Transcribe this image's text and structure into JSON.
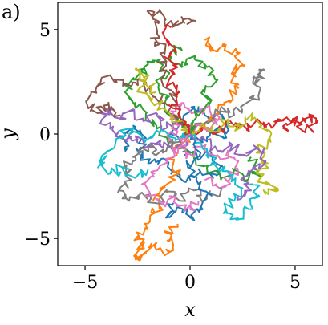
{
  "panel_label": "a)",
  "chart_data": {
    "type": "line",
    "title": "",
    "xlabel": "x",
    "ylabel": "y",
    "xlim": [
      -6.3,
      6.3
    ],
    "ylim": [
      -6.3,
      6.3
    ],
    "x_ticks": [
      -5,
      0,
      5
    ],
    "x_tick_labels": [
      "−5",
      "0",
      "5"
    ],
    "y_ticks": [
      -5,
      0,
      5
    ],
    "y_tick_labels": [
      "−5",
      "0",
      "5"
    ],
    "grid": false,
    "legend": "none",
    "series": [
      {
        "color": "#1f77b4",
        "values": [
          [
            0,
            0
          ],
          [
            0.6,
            -0.4
          ],
          [
            1.0,
            0.3
          ],
          [
            1.6,
            -0.2
          ],
          [
            1.9,
            0.5
          ],
          [
            1.4,
            1.0
          ],
          [
            0.9,
            0.7
          ],
          [
            0.4,
            1.3
          ],
          [
            -0.3,
            0.9
          ],
          [
            -0.8,
            0.2
          ],
          [
            -0.4,
            -0.6
          ],
          [
            0.3,
            -1.1
          ],
          [
            1.0,
            -0.9
          ],
          [
            1.5,
            -1.5
          ],
          [
            1.1,
            -2.1
          ],
          [
            0.5,
            -1.8
          ],
          [
            -0.2,
            -2.3
          ],
          [
            -0.9,
            -1.9
          ],
          [
            -1.4,
            -1.2
          ],
          [
            -2.0,
            -1.4
          ],
          [
            -2.5,
            -0.8
          ],
          [
            -2.1,
            -0.2
          ],
          [
            -2.7,
            0.4
          ],
          [
            -3.2,
            -0.1
          ],
          [
            -3.0,
            -0.7
          ]
        ]
      },
      {
        "color": "#ff7f0e",
        "values": [
          [
            0,
            0
          ],
          [
            -0.5,
            -0.5
          ],
          [
            -0.9,
            -1.2
          ],
          [
            -0.6,
            -1.9
          ],
          [
            -1.1,
            -2.4
          ],
          [
            -1.6,
            -2.9
          ],
          [
            -1.4,
            -3.5
          ],
          [
            -1.9,
            -3.9
          ],
          [
            -2.1,
            -4.5
          ],
          [
            -2.5,
            -4.9
          ],
          [
            -2.3,
            -5.5
          ],
          [
            -2.6,
            -6.0
          ],
          [
            -2.1,
            -5.7
          ],
          [
            -1.6,
            -5.2
          ],
          [
            -1.2,
            -5.8
          ],
          [
            -0.8,
            -5.3
          ],
          [
            -1.1,
            -4.7
          ],
          [
            -0.6,
            -4.3
          ]
        ]
      },
      {
        "color": "#ff7f0e",
        "values": [
          [
            0,
            0
          ],
          [
            0.7,
            0.5
          ],
          [
            1.3,
            1.1
          ],
          [
            1.9,
            1.6
          ],
          [
            2.3,
            2.2
          ],
          [
            2.0,
            2.9
          ],
          [
            2.6,
            3.3
          ],
          [
            2.2,
            3.9
          ],
          [
            1.6,
            4.2
          ],
          [
            1.1,
            4.0
          ],
          [
            0.7,
            4.5
          ]
        ]
      },
      {
        "color": "#2ca02c",
        "values": [
          [
            0,
            0
          ],
          [
            -0.6,
            0.6
          ],
          [
            -1.2,
            1.1
          ],
          [
            -1.0,
            1.8
          ],
          [
            -1.5,
            2.4
          ],
          [
            -1.1,
            3.0
          ],
          [
            -1.6,
            3.5
          ],
          [
            -2.2,
            3.2
          ],
          [
            -2.7,
            2.6
          ],
          [
            -3.1,
            2.0
          ],
          [
            -2.6,
            1.5
          ],
          [
            -2.1,
            1.0
          ],
          [
            -1.6,
            0.4
          ],
          [
            -1.1,
            -0.2
          ],
          [
            -0.5,
            -0.7
          ],
          [
            0.2,
            -1.2
          ],
          [
            0.8,
            -1.6
          ],
          [
            1.5,
            -2.1
          ],
          [
            2.1,
            -1.7
          ],
          [
            2.7,
            -2.2
          ],
          [
            3.2,
            -1.8
          ],
          [
            2.9,
            -1.1
          ]
        ]
      },
      {
        "color": "#d62728",
        "values": [
          [
            0,
            0
          ],
          [
            0.7,
            0.3
          ],
          [
            1.4,
            0.1
          ],
          [
            2.0,
            0.5
          ],
          [
            2.7,
            0.2
          ],
          [
            3.3,
            0.6
          ],
          [
            4.0,
            0.4
          ],
          [
            4.6,
            0.8
          ],
          [
            5.2,
            0.5
          ],
          [
            5.8,
            0.9
          ],
          [
            6.0,
            0.5
          ],
          [
            5.5,
            0.2
          ],
          [
            4.9,
            0.6
          ],
          [
            4.4,
            0.3
          ]
        ]
      },
      {
        "color": "#9467bd",
        "values": [
          [
            0,
            0
          ],
          [
            -0.5,
            0.5
          ],
          [
            -1.1,
            0.3
          ],
          [
            -1.6,
            0.9
          ],
          [
            -2.2,
            0.6
          ],
          [
            -2.8,
            1.1
          ],
          [
            -3.3,
            0.8
          ],
          [
            -3.9,
            1.2
          ],
          [
            -4.2,
            0.7
          ],
          [
            -3.7,
            0.2
          ],
          [
            -3.1,
            -0.3
          ],
          [
            -2.6,
            -0.1
          ],
          [
            -2.0,
            -0.6
          ],
          [
            -1.4,
            -0.3
          ],
          [
            -0.8,
            -0.8
          ],
          [
            -0.2,
            -0.4
          ]
        ]
      },
      {
        "color": "#8c564b",
        "values": [
          [
            0,
            0
          ],
          [
            -0.6,
            0.8
          ],
          [
            -1.2,
            1.5
          ],
          [
            -1.9,
            2.0
          ],
          [
            -2.5,
            2.6
          ],
          [
            -3.2,
            2.3
          ],
          [
            -3.8,
            2.8
          ],
          [
            -4.4,
            2.3
          ],
          [
            -4.9,
            1.6
          ],
          [
            -4.4,
            1.0
          ],
          [
            -3.9,
            1.4
          ],
          [
            -3.3,
            0.9
          ]
        ]
      },
      {
        "color": "#8c564b",
        "values": [
          [
            0,
            0
          ],
          [
            -0.5,
            1.1
          ],
          [
            -0.9,
            2.1
          ],
          [
            -1.4,
            3.0
          ],
          [
            -1.2,
            3.9
          ],
          [
            -1.7,
            4.6
          ],
          [
            -1.5,
            5.3
          ],
          [
            -1.9,
            5.9
          ],
          [
            -1.3,
            5.7
          ],
          [
            -0.8,
            5.2
          ],
          [
            -0.4,
            5.6
          ],
          [
            0.3,
            5.4
          ]
        ]
      },
      {
        "color": "#e377c2",
        "values": [
          [
            0,
            0
          ],
          [
            0.4,
            0.5
          ],
          [
            0.9,
            0.2
          ],
          [
            1.4,
            0.8
          ],
          [
            0.8,
            1.3
          ],
          [
            0.3,
            1.0
          ],
          [
            -0.3,
            1.5
          ],
          [
            -0.9,
            1.1
          ],
          [
            -0.5,
            0.4
          ],
          [
            -1.1,
            -0.1
          ],
          [
            -0.7,
            -0.7
          ],
          [
            -0.1,
            -1.0
          ],
          [
            0.6,
            -0.6
          ],
          [
            1.2,
            -1.2
          ],
          [
            1.8,
            -0.8
          ],
          [
            2.3,
            -1.3
          ],
          [
            2.0,
            -2.0
          ],
          [
            1.4,
            -2.6
          ],
          [
            0.7,
            -2.2
          ]
        ]
      },
      {
        "color": "#7f7f7f",
        "values": [
          [
            0,
            0
          ],
          [
            -0.7,
            -0.4
          ],
          [
            -1.3,
            -0.9
          ],
          [
            -2.0,
            -0.6
          ],
          [
            -2.6,
            -1.1
          ],
          [
            -3.2,
            -1.6
          ],
          [
            -2.8,
            -2.2
          ],
          [
            -3.4,
            -2.7
          ],
          [
            -2.9,
            -3.2
          ],
          [
            -2.3,
            -2.8
          ],
          [
            -1.7,
            -3.3
          ],
          [
            -1.1,
            -2.8
          ],
          [
            -0.5,
            -3.2
          ],
          [
            0.2,
            -2.7
          ],
          [
            0.8,
            -3.1
          ],
          [
            1.4,
            -2.6
          ]
        ]
      },
      {
        "color": "#7f7f7f",
        "values": [
          [
            0,
            0
          ],
          [
            0.8,
            0.6
          ],
          [
            1.5,
            1.3
          ],
          [
            2.1,
            0.9
          ],
          [
            2.7,
            1.5
          ],
          [
            3.3,
            2.0
          ],
          [
            3.0,
            2.7
          ],
          [
            3.5,
            3.1
          ],
          [
            3.1,
            2.4
          ]
        ]
      },
      {
        "color": "#bcbd22",
        "values": [
          [
            0,
            0
          ],
          [
            0.6,
            0.5
          ],
          [
            1.2,
            0.1
          ],
          [
            1.8,
            0.7
          ],
          [
            2.4,
            0.3
          ],
          [
            2.9,
            0.9
          ],
          [
            3.4,
            0.4
          ],
          [
            3.8,
            -0.2
          ],
          [
            3.3,
            -0.8
          ],
          [
            3.7,
            -1.4
          ],
          [
            3.2,
            -1.9
          ],
          [
            3.8,
            -2.4
          ],
          [
            4.2,
            -2.7
          ],
          [
            3.6,
            -2.9
          ]
        ]
      },
      {
        "color": "#bcbd22",
        "values": [
          [
            0,
            0
          ],
          [
            -0.6,
            0.6
          ],
          [
            -1.2,
            1.2
          ],
          [
            -1.8,
            1.7
          ],
          [
            -2.4,
            2.2
          ],
          [
            -2.0,
            2.8
          ],
          [
            -2.6,
            3.1
          ],
          [
            -2.2,
            2.5
          ],
          [
            -1.6,
            2.0
          ]
        ]
      },
      {
        "color": "#17becf",
        "values": [
          [
            0,
            0
          ],
          [
            -0.7,
            -0.3
          ],
          [
            -1.4,
            0.2
          ],
          [
            -2.1,
            -0.3
          ],
          [
            -2.7,
            0.3
          ],
          [
            -3.3,
            -0.2
          ],
          [
            -3.9,
            -0.8
          ],
          [
            -4.3,
            -1.5
          ],
          [
            -3.8,
            -1.9
          ],
          [
            -3.2,
            -1.6
          ],
          [
            -2.6,
            -2.1
          ],
          [
            -2.0,
            -1.7
          ]
        ]
      },
      {
        "color": "#17becf",
        "values": [
          [
            0,
            0
          ],
          [
            0.6,
            -0.7
          ],
          [
            1.2,
            -1.4
          ],
          [
            1.9,
            -2.0
          ],
          [
            2.5,
            -2.6
          ],
          [
            2.1,
            -3.2
          ],
          [
            1.6,
            -3.8
          ],
          [
            2.2,
            -4.1
          ],
          [
            2.8,
            -3.6
          ],
          [
            3.3,
            -3.0
          ],
          [
            3.0,
            -2.4
          ]
        ]
      },
      {
        "color": "#1f77b4",
        "values": [
          [
            0,
            0
          ],
          [
            0.5,
            -0.9
          ],
          [
            -0.1,
            -1.6
          ],
          [
            0.4,
            -2.4
          ],
          [
            1.0,
            -2.9
          ],
          [
            0.6,
            -3.6
          ],
          [
            0.0,
            -4.0
          ],
          [
            -0.6,
            -3.5
          ],
          [
            -1.1,
            -4.0
          ],
          [
            -0.8,
            -3.3
          ]
        ]
      },
      {
        "color": "#2ca02c",
        "values": [
          [
            0,
            0
          ],
          [
            0.3,
            0.8
          ],
          [
            0.9,
            1.4
          ],
          [
            0.6,
            2.1
          ],
          [
            1.2,
            2.6
          ],
          [
            0.8,
            3.2
          ],
          [
            0.2,
            3.6
          ],
          [
            -0.4,
            3.2
          ],
          [
            -0.9,
            3.7
          ],
          [
            -0.5,
            4.2
          ]
        ]
      },
      {
        "color": "#d62728",
        "values": [
          [
            0,
            0
          ],
          [
            -0.4,
            0.7
          ],
          [
            -0.9,
            1.3
          ],
          [
            -0.5,
            2.0
          ],
          [
            -1.0,
            2.6
          ],
          [
            -0.6,
            3.2
          ],
          [
            -1.1,
            3.6
          ],
          [
            -0.7,
            4.1
          ],
          [
            -1.2,
            4.6
          ],
          [
            -0.9,
            5.1
          ]
        ]
      },
      {
        "color": "#9467bd",
        "values": [
          [
            0,
            0
          ],
          [
            0.7,
            -0.3
          ],
          [
            1.3,
            -0.8
          ],
          [
            2.0,
            -0.5
          ],
          [
            2.6,
            -1.0
          ],
          [
            3.2,
            -0.7
          ],
          [
            3.6,
            -1.3
          ],
          [
            3.1,
            -1.7
          ],
          [
            2.5,
            -2.1
          ],
          [
            2.9,
            -2.7
          ],
          [
            2.3,
            -3.0
          ]
        ]
      },
      {
        "color": "#e377c2",
        "values": [
          [
            0,
            0
          ],
          [
            -0.6,
            -0.7
          ],
          [
            -1.1,
            -1.4
          ],
          [
            -1.7,
            -1.9
          ],
          [
            -2.3,
            -2.4
          ],
          [
            -1.9,
            -3.0
          ],
          [
            -1.3,
            -3.4
          ],
          [
            -0.7,
            -3.0
          ],
          [
            -0.2,
            -3.6
          ],
          [
            0.4,
            -3.2
          ]
        ]
      }
    ]
  }
}
